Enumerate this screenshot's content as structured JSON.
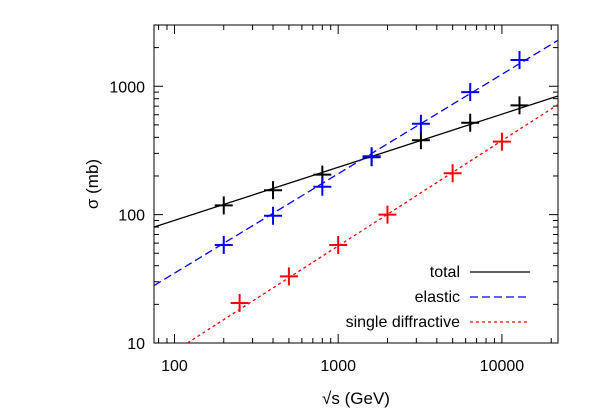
{
  "chart_data": {
    "type": "scatter",
    "title": "",
    "xlabel": "√s (GeV)",
    "ylabel": "σ (mb)",
    "x_scale": "log",
    "y_scale": "log",
    "xlim": [
      75,
      22000
    ],
    "ylim": [
      10,
      3000
    ],
    "x_ticks": [
      {
        "value": 100,
        "label": "100"
      },
      {
        "value": 1000,
        "label": "1000"
      },
      {
        "value": 10000,
        "label": "10000"
      }
    ],
    "y_ticks": [
      {
        "value": 10,
        "label": "10"
      },
      {
        "value": 100,
        "label": "100"
      },
      {
        "value": 1000,
        "label": "1000"
      }
    ],
    "grid": false,
    "legend_position": "bottom-right",
    "series": [
      {
        "name": "total",
        "color": "#000000",
        "line_style": "solid",
        "fit_line": [
          [
            75,
            80
          ],
          [
            22000,
            840
          ]
        ],
        "points": [
          [
            200,
            118
          ],
          [
            400,
            155
          ],
          [
            800,
            205
          ],
          [
            1600,
            280
          ],
          [
            3200,
            380
          ],
          [
            6400,
            520
          ],
          [
            12800,
            710
          ]
        ]
      },
      {
        "name": "elastic",
        "color": "#0000ff",
        "line_style": "dashed",
        "fit_line": [
          [
            75,
            28
          ],
          [
            22000,
            2280
          ]
        ],
        "points": [
          [
            200,
            58
          ],
          [
            400,
            98
          ],
          [
            800,
            165
          ],
          [
            1600,
            285
          ],
          [
            3200,
            510
          ],
          [
            6400,
            900
          ],
          [
            12800,
            1600
          ]
        ]
      },
      {
        "name": "single diffractive",
        "color": "#ff0000",
        "line_style": "dotted",
        "fit_line": [
          [
            120,
            10
          ],
          [
            22000,
            720
          ]
        ],
        "points": [
          [
            250,
            20.5
          ],
          [
            500,
            33
          ],
          [
            1000,
            58
          ],
          [
            2000,
            100
          ],
          [
            5000,
            210
          ],
          [
            10000,
            370
          ]
        ]
      }
    ]
  }
}
